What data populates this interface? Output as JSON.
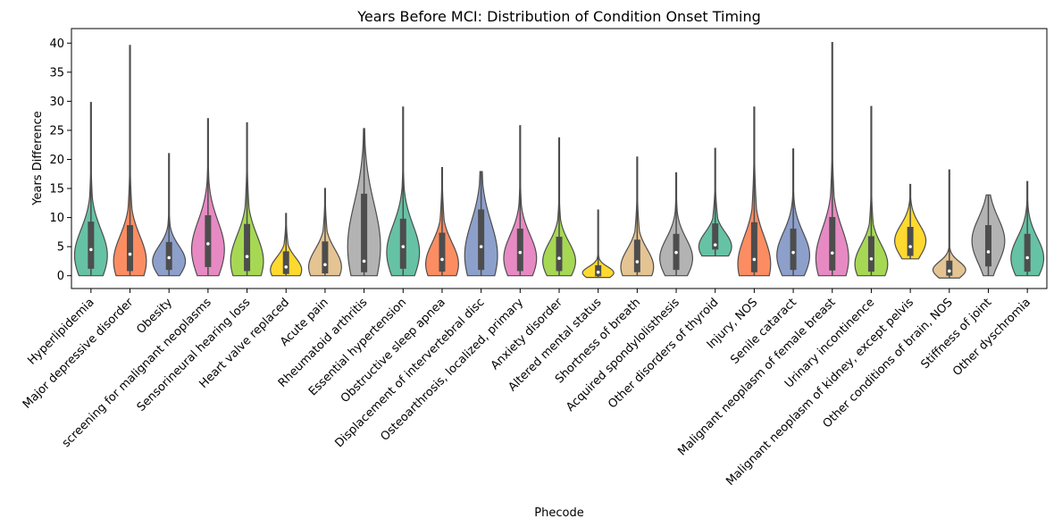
{
  "chart_data": {
    "type": "violin",
    "title": "Years Before MCI: Distribution of Condition Onset Timing",
    "xlabel": "Phecode",
    "ylabel": "Years Difference",
    "ylim": [
      -2.2,
      42.5
    ],
    "yticks": [
      0,
      5,
      10,
      15,
      20,
      25,
      30,
      35,
      40
    ],
    "grid": false,
    "legend": "none",
    "palette": [
      "#66c2a5",
      "#fc8d62",
      "#8da0cb",
      "#e78ac3",
      "#a6d854",
      "#ffd92f",
      "#e5c494",
      "#b3b3b3"
    ],
    "categories": [
      "Hyperlipidemia",
      "Major depressive disorder",
      "Obesity",
      "screening for malignant neoplasms",
      "Sensorineural hearing loss",
      "Heart valve replaced",
      "Acute pain",
      "Rheumatoid arthritis",
      "Essential hypertension",
      "Obstructive sleep apnea",
      "Displacement of intervertebral disc",
      "Osteoarthrosis, localized, primary",
      "Anxiety disorder",
      "Altered mental status",
      "Shortness of breath",
      "Acquired spondylolisthesis",
      "Other disorders of thyroid",
      "Injury, NOS",
      "Senile cataract",
      "Malignant neoplasm of female breast",
      "Urinary incontinence",
      "Malignant neoplasm of kidney, except pelvis",
      "Other conditions of brain, NOS",
      "Stiffness of joint",
      "Other dyschromia"
    ],
    "stats": [
      {
        "min": 0,
        "q1": 1.2,
        "median": 4.5,
        "q3": 9.3,
        "max": 29.8,
        "mode": 3.5,
        "maxwidth": 0.42
      },
      {
        "min": 0,
        "q1": 0.8,
        "median": 3.7,
        "q3": 8.7,
        "max": 39.6,
        "mode": 2.5,
        "maxwidth": 0.42
      },
      {
        "min": 0,
        "q1": 1.0,
        "median": 3.1,
        "q3": 5.8,
        "max": 21.0,
        "mode": 2.5,
        "maxwidth": 0.42
      },
      {
        "min": 0,
        "q1": 1.5,
        "median": 5.5,
        "q3": 10.4,
        "max": 27.0,
        "mode": 4.5,
        "maxwidth": 0.42
      },
      {
        "min": 0,
        "q1": 0.8,
        "median": 3.3,
        "q3": 8.9,
        "max": 26.3,
        "mode": 2.5,
        "maxwidth": 0.42
      },
      {
        "min": 0,
        "q1": 0.3,
        "median": 1.5,
        "q3": 4.2,
        "max": 10.7,
        "mode": 1.0,
        "maxwidth": 0.4
      },
      {
        "min": 0,
        "q1": 0.4,
        "median": 1.9,
        "q3": 5.9,
        "max": 15.0,
        "mode": 1.5,
        "maxwidth": 0.42
      },
      {
        "min": 0,
        "q1": 0.6,
        "median": 2.5,
        "q3": 14.1,
        "max": 25.3,
        "mode": 5.0,
        "maxwidth": 0.42
      },
      {
        "min": 0,
        "q1": 1.2,
        "median": 5.0,
        "q3": 9.8,
        "max": 29.0,
        "mode": 4.0,
        "maxwidth": 0.42
      },
      {
        "min": 0,
        "q1": 0.7,
        "median": 2.8,
        "q3": 7.4,
        "max": 18.6,
        "mode": 2.0,
        "maxwidth": 0.42
      },
      {
        "min": 0,
        "q1": 1.0,
        "median": 5.0,
        "q3": 11.4,
        "max": 17.9,
        "mode": 3.5,
        "maxwidth": 0.42
      },
      {
        "min": 0,
        "q1": 0.8,
        "median": 4.0,
        "q3": 8.1,
        "max": 25.8,
        "mode": 3.0,
        "maxwidth": 0.42
      },
      {
        "min": 0,
        "q1": 0.8,
        "median": 3.0,
        "q3": 6.7,
        "max": 23.7,
        "mode": 2.5,
        "maxwidth": 0.42
      },
      {
        "min": -0.3,
        "q1": -0.1,
        "median": 0.6,
        "q3": 1.8,
        "max": 11.3,
        "mode": 0.5,
        "maxwidth": 0.4
      },
      {
        "min": 0,
        "q1": 0.6,
        "median": 2.4,
        "q3": 6.2,
        "max": 20.4,
        "mode": 1.5,
        "maxwidth": 0.42
      },
      {
        "min": 0,
        "q1": 1.0,
        "median": 4.0,
        "q3": 7.2,
        "max": 17.7,
        "mode": 3.0,
        "maxwidth": 0.42
      },
      {
        "min": 3.4,
        "q1": 4.5,
        "median": 5.3,
        "q3": 9.0,
        "max": 21.9,
        "mode": 5.0,
        "maxwidth": 0.42
      },
      {
        "min": 0,
        "q1": 0.6,
        "median": 2.8,
        "q3": 9.2,
        "max": 29.0,
        "mode": 2.0,
        "maxwidth": 0.42
      },
      {
        "min": 0,
        "q1": 1.0,
        "median": 4.0,
        "q3": 8.1,
        "max": 21.8,
        "mode": 3.5,
        "maxwidth": 0.42
      },
      {
        "min": 0,
        "q1": 0.9,
        "median": 3.9,
        "q3": 10.1,
        "max": 40.1,
        "mode": 3.0,
        "maxwidth": 0.42
      },
      {
        "min": 0,
        "q1": 0.7,
        "median": 2.9,
        "q3": 6.8,
        "max": 29.1,
        "mode": 2.0,
        "maxwidth": 0.42
      },
      {
        "min": 2.9,
        "q1": 3.4,
        "median": 5.0,
        "q3": 8.4,
        "max": 15.7,
        "mode": 6.0,
        "maxwidth": 0.4
      },
      {
        "min": -0.4,
        "q1": 0.0,
        "median": 0.8,
        "q3": 2.6,
        "max": 18.2,
        "mode": 1.0,
        "maxwidth": 0.42
      },
      {
        "min": 0,
        "q1": 1.6,
        "median": 4.1,
        "q3": 8.7,
        "max": 13.9,
        "mode": 6.0,
        "maxwidth": 0.42
      },
      {
        "min": 0,
        "q1": 0.7,
        "median": 3.1,
        "q3": 7.2,
        "max": 16.2,
        "mode": 3.0,
        "maxwidth": 0.42
      }
    ]
  }
}
